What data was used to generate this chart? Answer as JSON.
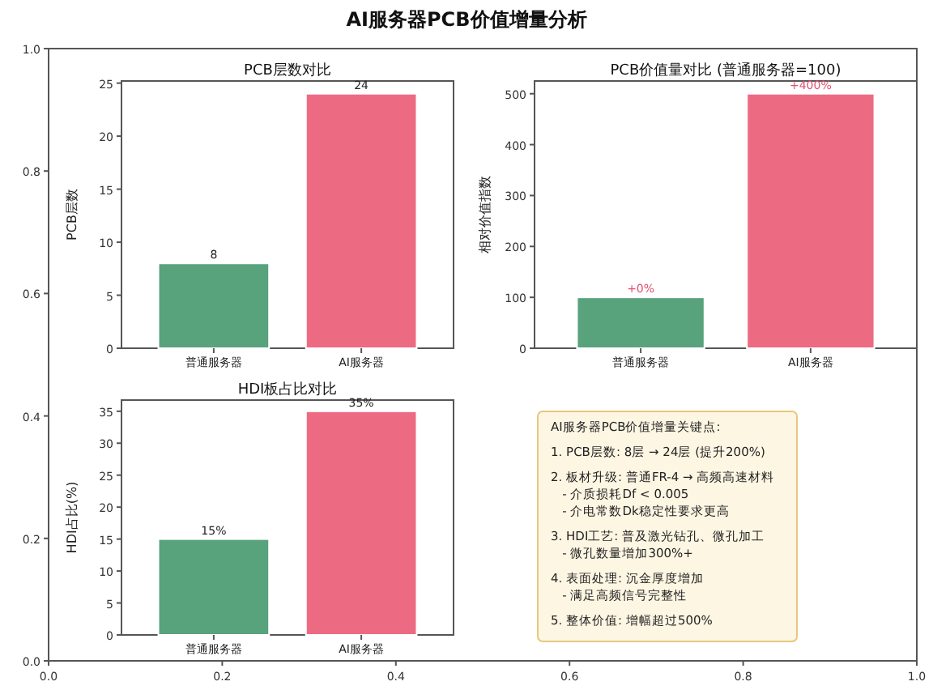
{
  "chart_data": [
    {
      "type": "bar",
      "title": "PCB层数对比",
      "ylabel": "PCB层数",
      "categories": [
        "普通服务器",
        "AI服务器"
      ],
      "values": [
        8,
        24
      ],
      "colors": [
        "#58a27c",
        "#ec6a82"
      ],
      "ylim": [
        0,
        25.2
      ],
      "yticks": [
        0,
        5,
        10,
        15,
        20,
        25
      ],
      "data_labels": true
    },
    {
      "type": "bar",
      "title": "PCB价值量对比 (普通服务器=100)",
      "ylabel": "相对价值指数",
      "categories": [
        "普通服务器",
        "AI服务器"
      ],
      "values": [
        100,
        500
      ],
      "colors": [
        "#58a27c",
        "#ec6a82"
      ],
      "ylim": [
        0,
        525
      ],
      "yticks": [
        0,
        100,
        200,
        300,
        400,
        500
      ],
      "annotations": [
        {
          "text": "+0%",
          "x": "普通服务器",
          "y": 100
        },
        {
          "text": "+400%",
          "x": "AI服务器",
          "y": 500
        }
      ]
    },
    {
      "type": "bar",
      "title": "HDI板占比对比",
      "ylabel": "HDI占比(%)",
      "categories": [
        "普通服务器",
        "AI服务器"
      ],
      "values": [
        15,
        35
      ],
      "colors": [
        "#58a27c",
        "#ec6a82"
      ],
      "ylim": [
        0,
        36.75
      ],
      "yticks": [
        0,
        5,
        10,
        15,
        20,
        25,
        30,
        35
      ],
      "value_labels": [
        "15%",
        "35%"
      ]
    },
    {
      "type": "scatter",
      "title": "AI服务器PCB价值增量分析",
      "xlim": [
        0,
        1
      ],
      "ylim": [
        0,
        1
      ],
      "xticks": [
        {
          "value": 0,
          "label": "0.0"
        },
        {
          "value": 0.2,
          "label": "0.2"
        },
        {
          "value": 0.4,
          "label": "0.4"
        },
        {
          "value": 0.6,
          "label": "0.6"
        },
        {
          "value": 0.8,
          "label": "0.8"
        },
        {
          "value": 1,
          "label": "1.0"
        }
      ],
      "yticks": [
        {
          "value": 0,
          "label": "0.0"
        },
        {
          "value": 0.2,
          "label": "0.2"
        },
        {
          "value": 0.4,
          "label": "0.4"
        },
        {
          "value": 0.6,
          "label": "0.6"
        },
        {
          "value": 0.8,
          "label": "0.8"
        },
        {
          "value": 1,
          "label": "1.0"
        }
      ],
      "annotations": [
        "AI服务器PCB价值增量关键点:\n\n1. PCB层数: 8层 → 24层 (提升200%)\n\n2. 板材升级: 普通FR-4 → 高频高速材料\n   - 介质损耗Df < 0.005\n   - 介电常数Dk稳定性要求更高\n\n3. HDI工艺: 普及激光钻孔、微孔加工\n   - 微孔数量增加300%+\n\n4. 表面处理: 沉金厚度增加\n   - 满足高频信号完整性\n\n5. 整体价值: 增幅超过500%"
      ]
    }
  ]
}
